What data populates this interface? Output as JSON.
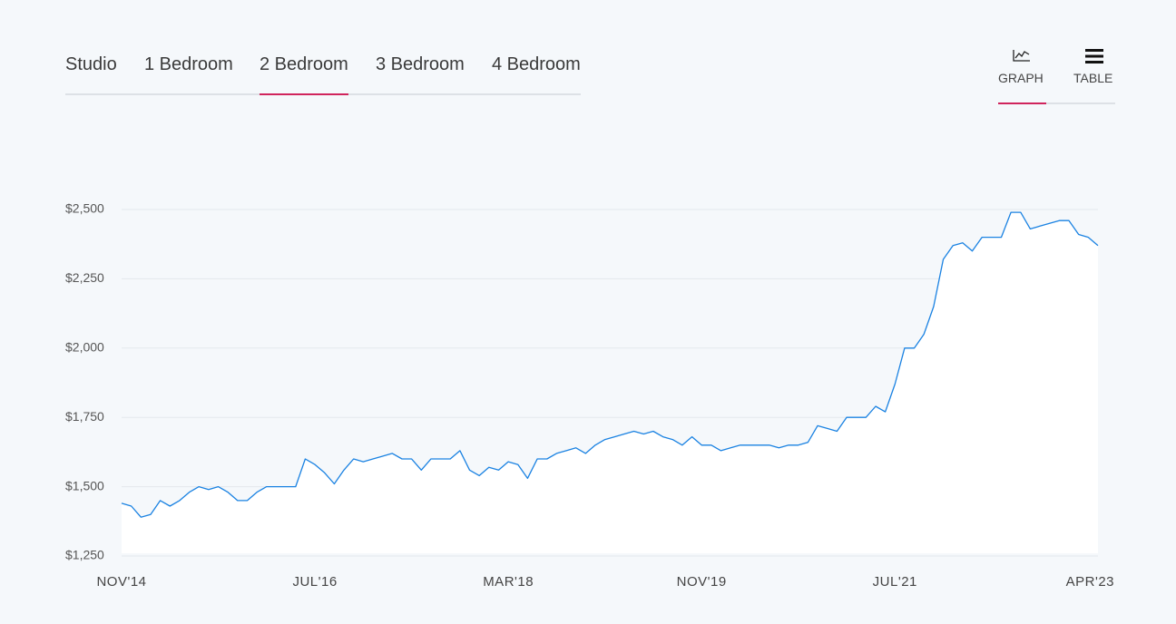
{
  "tabs": [
    "Studio",
    "1 Bedroom",
    "2 Bedroom",
    "3 Bedroom",
    "4 Bedroom"
  ],
  "view_toggle": [
    "GRAPH",
    "TABLE"
  ],
  "chart_data": {
    "type": "line",
    "color": "#1a82e2",
    "fill": "#ffffff",
    "grid": true,
    "x": [
      "2014-11",
      "2014-12",
      "2015-01",
      "2015-02",
      "2015-03",
      "2015-04",
      "2015-05",
      "2015-06",
      "2015-07",
      "2015-08",
      "2015-09",
      "2015-10",
      "2015-11",
      "2015-12",
      "2016-01",
      "2016-02",
      "2016-03",
      "2016-04",
      "2016-05",
      "2016-06",
      "2016-07",
      "2016-08",
      "2016-09",
      "2016-10",
      "2016-11",
      "2016-12",
      "2017-01",
      "2017-02",
      "2017-03",
      "2017-04",
      "2017-05",
      "2017-06",
      "2017-07",
      "2017-08",
      "2017-09",
      "2017-10",
      "2017-11",
      "2017-12",
      "2018-01",
      "2018-02",
      "2018-03",
      "2018-04",
      "2018-05",
      "2018-06",
      "2018-07",
      "2018-08",
      "2018-09",
      "2018-10",
      "2018-11",
      "2018-12",
      "2019-01",
      "2019-02",
      "2019-03",
      "2019-04",
      "2019-05",
      "2019-06",
      "2019-07",
      "2019-08",
      "2019-09",
      "2019-10",
      "2019-11",
      "2019-12",
      "2020-01",
      "2020-02",
      "2020-03",
      "2020-04",
      "2020-05",
      "2020-06",
      "2020-07",
      "2020-08",
      "2020-09",
      "2020-10",
      "2020-11",
      "2020-12",
      "2021-01",
      "2021-02",
      "2021-03",
      "2021-04",
      "2021-05",
      "2021-06",
      "2021-07",
      "2021-08",
      "2021-09",
      "2021-10",
      "2021-11",
      "2021-12",
      "2022-01",
      "2022-02",
      "2022-03",
      "2022-04",
      "2022-05",
      "2022-06",
      "2022-07",
      "2022-08",
      "2022-09",
      "2022-10",
      "2022-11",
      "2022-12",
      "2023-01",
      "2023-02",
      "2023-03",
      "2023-04"
    ],
    "values": [
      1440,
      1430,
      1390,
      1400,
      1450,
      1430,
      1450,
      1480,
      1500,
      1490,
      1500,
      1480,
      1450,
      1450,
      1480,
      1500,
      1500,
      1500,
      1500,
      1600,
      1580,
      1550,
      1510,
      1560,
      1600,
      1590,
      1600,
      1610,
      1620,
      1600,
      1600,
      1560,
      1600,
      1600,
      1600,
      1630,
      1560,
      1540,
      1570,
      1560,
      1590,
      1580,
      1530,
      1600,
      1600,
      1620,
      1630,
      1640,
      1620,
      1650,
      1670,
      1680,
      1690,
      1700,
      1690,
      1700,
      1680,
      1670,
      1650,
      1680,
      1650,
      1650,
      1630,
      1640,
      1650,
      1650,
      1650,
      1650,
      1640,
      1650,
      1650,
      1660,
      1720,
      1710,
      1700,
      1750,
      1750,
      1750,
      1790,
      1770,
      1870,
      2000,
      2000,
      2050,
      2150,
      2320,
      2370,
      2380,
      2350,
      2400,
      2400,
      2400,
      2490,
      2490,
      2430,
      2440,
      2450,
      2460,
      2460,
      2410,
      2400,
      2370
    ],
    "ylim": [
      1250,
      2500
    ],
    "yticks": [
      {
        "value": 1250,
        "label": "$1,250"
      },
      {
        "value": 1500,
        "label": "$1,500"
      },
      {
        "value": 1750,
        "label": "$1,750"
      },
      {
        "value": 2000,
        "label": "$2,000"
      },
      {
        "value": 2250,
        "label": "$2,250"
      },
      {
        "value": 2500,
        "label": "$2,500"
      }
    ],
    "xticks": [
      {
        "value": "2014-11",
        "label": "NOV'14"
      },
      {
        "value": "2016-07",
        "label": "JUL'16"
      },
      {
        "value": "2018-03",
        "label": "MAR'18"
      },
      {
        "value": "2019-11",
        "label": "NOV'19"
      },
      {
        "value": "2021-07",
        "label": "JUL'21"
      },
      {
        "value": "2023-04",
        "label": "APR'23"
      }
    ]
  }
}
